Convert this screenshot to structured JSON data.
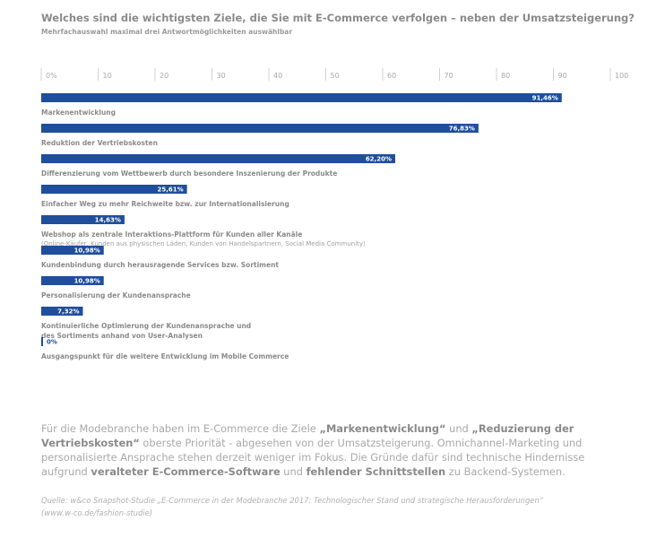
{
  "chart_data": {
    "type": "bar",
    "orientation": "horizontal",
    "title": "Welches sind die wichtigsten Ziele, die Sie mit E-Commerce verfolgen – neben der Umsatzsteigerung?",
    "subtitle": "Mehrfachauswahl maximal drei Antwortmöglichkeiten auswählbar",
    "x_ticks": [
      "0%",
      "10",
      "20",
      "30",
      "40",
      "50",
      "60",
      "70",
      "80",
      "90",
      "100"
    ],
    "xlim": [
      0,
      100
    ],
    "grid": false,
    "bar_color": "#1f4e9c",
    "categories": [
      {
        "label": "Markenentwicklung",
        "sublabel": "",
        "value": 91.46,
        "value_label": "91,46%"
      },
      {
        "label": "Reduktion der Vertriebskosten",
        "sublabel": "",
        "value": 76.83,
        "value_label": "76,83%"
      },
      {
        "label": "Differenzierung vom Wettbewerb durch besondere Inszenierung der Produkte",
        "sublabel": "",
        "value": 62.2,
        "value_label": "62,20%"
      },
      {
        "label": "Einfacher Weg zu mehr Reichweite bzw. zur Internationalisierung",
        "sublabel": "",
        "value": 25.61,
        "value_label": "25,61%"
      },
      {
        "label": "Webshop als zentrale Interaktions-Plattform für Kunden aller Kanäle",
        "sublabel": "(Online-Käufer, Kunden aus physischen Läden, Kunden von Handelspartnern, Social Media Community)",
        "value": 14.63,
        "value_label": "14,63%"
      },
      {
        "label": "Kundenbindung durch herausragende Services bzw. Sortiment",
        "sublabel": "",
        "value": 10.98,
        "value_label": "10,98%"
      },
      {
        "label": "Personalisierung der Kundenansprache",
        "sublabel": "",
        "value": 10.98,
        "value_label": "10,98%"
      },
      {
        "label": "Kontinuierliche Optimierung der Kundenansprache und",
        "label2": "des Sortiments anhand von User-Analysen",
        "sublabel": "",
        "value": 7.32,
        "value_label": "7,32%"
      },
      {
        "label": "Ausgangspunkt für die weitere Entwicklung im Mobile Commerce",
        "sublabel": "",
        "value": 0,
        "value_label": "0%"
      }
    ]
  },
  "description": {
    "p1": "Für die Modebranche haben im E-Commerce die Ziele ",
    "b1": "„Markenentwicklung“",
    "p2": " und ",
    "b2": "„Reduzierung der Vertriebskosten“",
    "p3": " oberste Priorität - abgesehen von der Umsatzsteigerung. Omnichannel-Marketing und personalisierte Ansprache stehen derzeit weniger im Fokus. Die Gründe dafür sind technische Hindernisse aufgrund ",
    "b3": "veralteter E-Commerce-Software",
    "p4": " und ",
    "b4": "fehlender Schnittstellen",
    "p5": " zu Backend-Systemen."
  },
  "source": {
    "line1": "Quelle: w&co Snapshot-Studie „E-Commerce in der Modebranche 2017: Technologischer Stand und strategische Herausforderungen“",
    "line2": "(www.w-co.de/fashion-studie)"
  }
}
